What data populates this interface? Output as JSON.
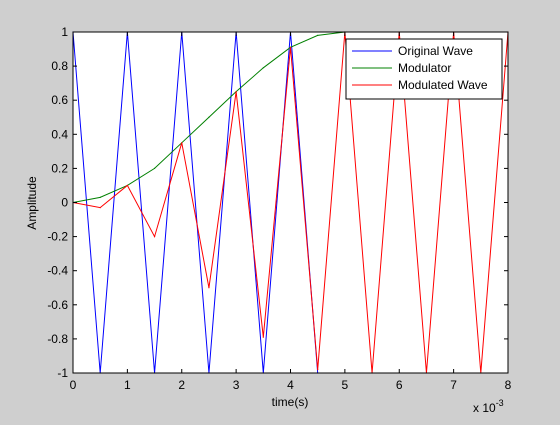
{
  "chart_data": {
    "type": "line",
    "xlabel": "time(s)",
    "ylabel": "Amplitude",
    "xlim": [
      0,
      8
    ],
    "ylim": [
      -1,
      1
    ],
    "x_multiplier_label": "x 10",
    "x_multiplier_exponent": "-3",
    "x_ticks": [
      "0",
      "1",
      "2",
      "3",
      "4",
      "5",
      "6",
      "7",
      "8"
    ],
    "y_ticks": [
      "-1",
      "-0.8",
      "-0.6",
      "-0.4",
      "-0.2",
      "0",
      "0.2",
      "0.4",
      "0.6",
      "0.8",
      "1"
    ],
    "grid": false,
    "legend_position": "top-right",
    "series": [
      {
        "name": "Original Wave",
        "color": "#0000ff",
        "x": [
          0,
          0.5,
          1,
          1.5,
          2,
          2.5,
          3,
          3.5,
          4,
          4.5
        ],
        "y": [
          1,
          -1,
          1,
          -1,
          1,
          -1,
          1,
          -1,
          1,
          -1
        ]
      },
      {
        "name": "Modulator",
        "color": "#008000",
        "x": [
          0,
          0.5,
          1,
          1.5,
          2,
          2.5,
          3,
          3.5,
          4,
          4.5,
          5
        ],
        "y": [
          0,
          0.03,
          0.1,
          0.2,
          0.35,
          0.5,
          0.65,
          0.79,
          0.91,
          0.98,
          1
        ]
      },
      {
        "name": "Modulated Wave",
        "color": "#ff0000",
        "x": [
          0,
          0.5,
          1,
          1.5,
          2,
          2.5,
          3,
          3.5,
          4,
          4.5,
          5,
          5.5,
          6,
          6.5,
          7,
          7.5,
          8
        ],
        "y": [
          0,
          -0.03,
          0.1,
          -0.2,
          0.35,
          -0.5,
          0.65,
          -0.79,
          0.91,
          -0.98,
          1,
          -1,
          1,
          -1,
          1,
          -1,
          1
        ]
      }
    ]
  }
}
